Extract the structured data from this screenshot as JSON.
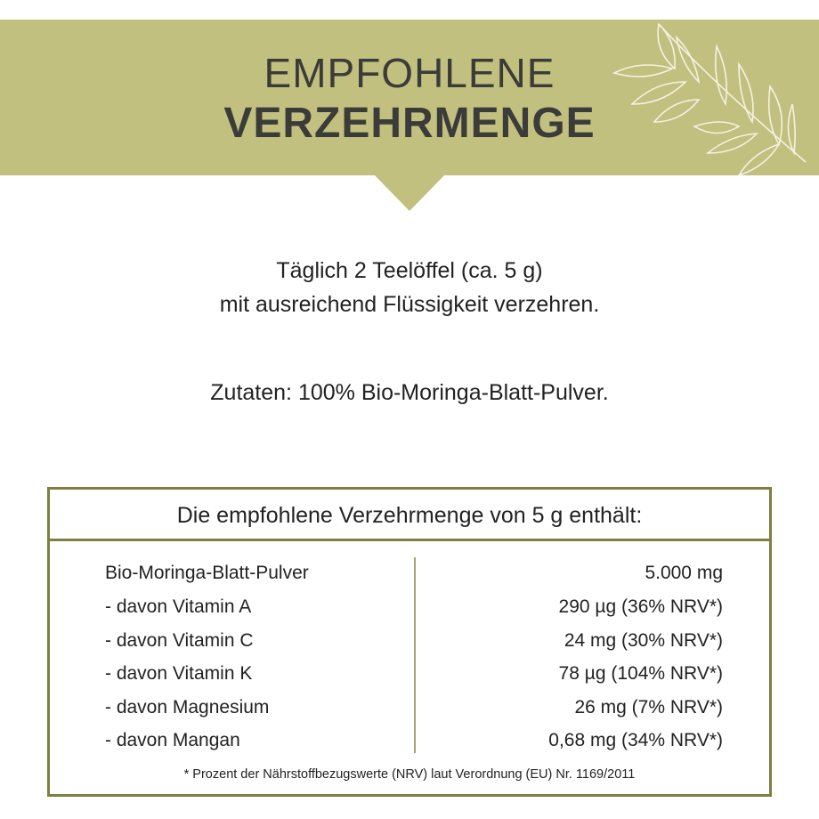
{
  "header": {
    "title_line1": "EMPFOHLENE",
    "title_line2": "VERZEHRMENGE",
    "decoration_icon": "leaf-branch-icon",
    "banner_color": "#c2c07e"
  },
  "dosage": {
    "line1": "Täglich 2 Teelöffel (ca. 5 g)",
    "line2": "mit ausreichend Flüssigkeit verzehren."
  },
  "ingredients": "Zutaten: 100% Bio-Moringa-Blatt-Pulver.",
  "nutrition_table": {
    "heading": "Die empfohlene Verzehrmenge von 5 g enthält:",
    "border_color": "#7f7f40",
    "rows": [
      {
        "label": "Bio-Moringa-Blatt-Pulver",
        "value": "5.000 mg"
      },
      {
        "label": "- davon Vitamin A",
        "value": "290 µg (36% NRV*)"
      },
      {
        "label": "- davon Vitamin C",
        "value": "24 mg (30% NRV*)"
      },
      {
        "label": "- davon Vitamin K",
        "value": "78 µg (104% NRV*)"
      },
      {
        "label": "- davon Magnesium",
        "value": "26 mg (7% NRV*)"
      },
      {
        "label": "- davon Mangan",
        "value": "0,68 mg (34% NRV*)"
      }
    ],
    "footnote": "* Prozent der Nährstoffbezugswerte (NRV) laut Verordnung (EU) Nr. 1169/2011"
  }
}
